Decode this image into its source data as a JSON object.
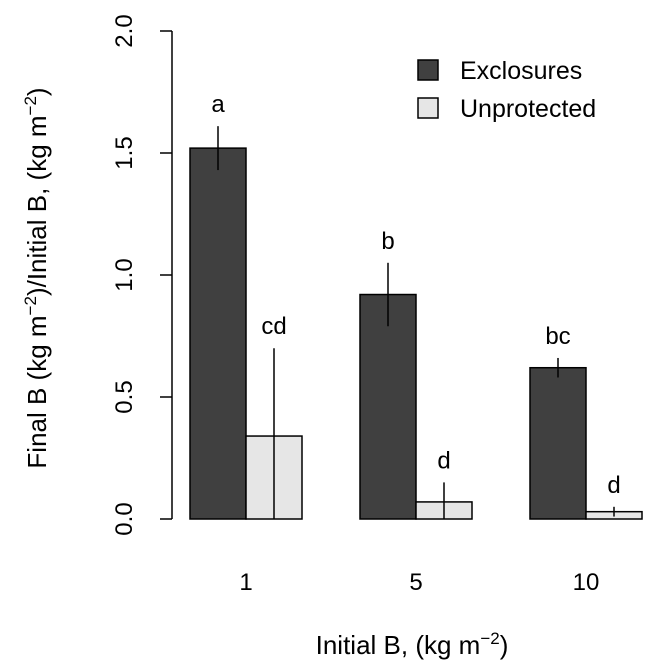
{
  "chart_data": {
    "type": "bar",
    "title": "",
    "xlabel": "Initial B, (kg m⁻²)",
    "ylabel": "Final B (kg m⁻²)/Initial B, (kg m⁻²)",
    "categories": [
      "1",
      "5",
      "10"
    ],
    "ylim": [
      0,
      2
    ],
    "yticks": [
      "0.0",
      "0.5",
      "1.0",
      "1.5",
      "2.0"
    ],
    "grid": false,
    "legend_position": "top-right",
    "series": [
      {
        "name": "Exclosures",
        "color": "#404040",
        "values": [
          1.52,
          0.92,
          0.62
        ],
        "error_low": [
          1.43,
          0.79,
          0.58
        ],
        "error_high": [
          1.61,
          1.05,
          0.66
        ],
        "letters": [
          "a",
          "b",
          "bc"
        ]
      },
      {
        "name": "Unprotected",
        "color": "#e6e6e6",
        "values": [
          0.34,
          0.07,
          0.03
        ],
        "error_low": [
          0.0,
          0.0,
          0.01
        ],
        "error_high": [
          0.7,
          0.15,
          0.05
        ],
        "letters": [
          "cd",
          "d",
          "d"
        ]
      }
    ]
  }
}
